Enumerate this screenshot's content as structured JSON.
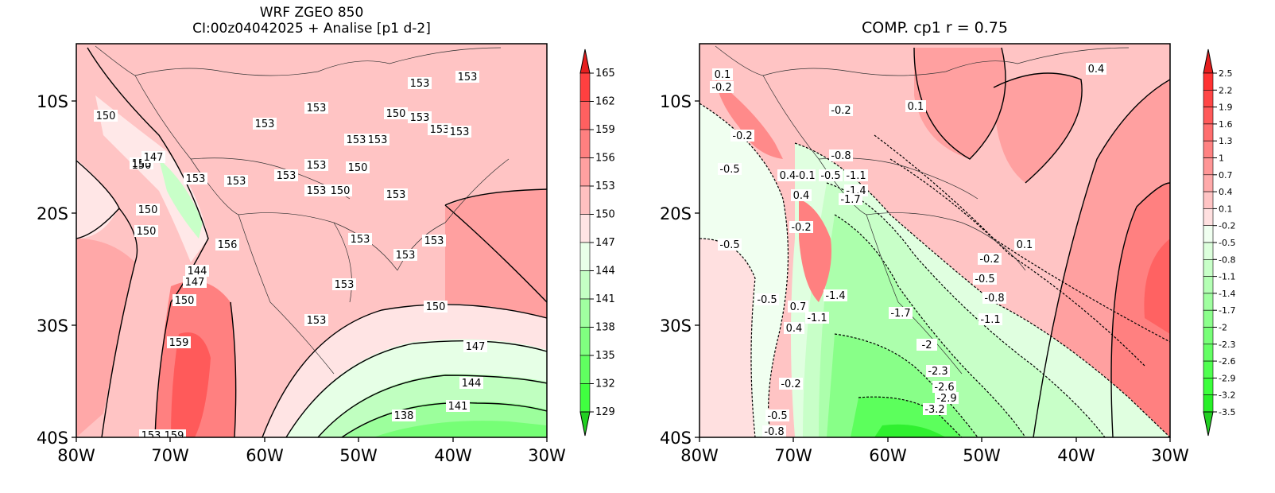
{
  "left_panel": {
    "title_line1": "WRF ZGEO 850",
    "title_line2": "CI:00z04042025 + Analise  [p1 d-2]",
    "lon_labels": [
      "80W",
      "70W",
      "60W",
      "50W",
      "40W",
      "30W"
    ],
    "lat_labels": [
      "10S",
      "20S",
      "30S",
      "40S"
    ],
    "colorbar": {
      "arrow_top_color": "#e61e1e",
      "arrow_bottom_color": "#22d022",
      "ticks": [
        "165",
        "162",
        "159",
        "156",
        "153",
        "150",
        "147",
        "144",
        "141",
        "138",
        "135",
        "132",
        "129"
      ],
      "colors": [
        "#ff1e1e",
        "#ff4040",
        "#ff6060",
        "#ff8080",
        "#ffa0a0",
        "#ffc0c0",
        "#ffe4e4",
        "#e8ffe8",
        "#c4ffc4",
        "#a0ffa0",
        "#80ff80",
        "#60ff60",
        "#40ff40",
        "#22e022"
      ]
    },
    "contour_labels": [
      "153",
      "153",
      "153",
      "153",
      "153",
      "150",
      "153",
      "153",
      "150",
      "153",
      "153",
      "153",
      "153",
      "153",
      "150",
      "153",
      "153",
      "150",
      "153",
      "153",
      "150",
      "147",
      "150",
      "153",
      "150",
      "156",
      "150",
      "144",
      "147",
      "150",
      "153",
      "153",
      "153",
      "153",
      "150",
      "159",
      "147",
      "144",
      "141",
      "138",
      "153",
      "159"
    ]
  },
  "right_panel": {
    "title": "COMP. cp1   r =   0.75",
    "lon_labels": [
      "80W",
      "70W",
      "60W",
      "50W",
      "40W",
      "30W"
    ],
    "lat_labels": [
      "10S",
      "20S",
      "30S",
      "40S"
    ],
    "colorbar": {
      "arrow_top_color": "#e61e1e",
      "arrow_bottom_color": "#22d022",
      "ticks": [
        "2.5",
        "2.2",
        "1.9",
        "1.6",
        "1.3",
        "1",
        "0.7",
        "0.4",
        "0.1",
        "-0.2",
        "-0.5",
        "-0.8",
        "-1.1",
        "-1.4",
        "-1.7",
        "-2",
        "-2.3",
        "-2.6",
        "-2.9",
        "-3.2",
        "-3.5"
      ],
      "colors": [
        "#ff1e1e",
        "#ff3232",
        "#ff4646",
        "#ff5a5a",
        "#ff6e6e",
        "#ff8282",
        "#ff9696",
        "#ffaaaa",
        "#ffc4c4",
        "#ffe0e0",
        "#f0fff0",
        "#dcffdc",
        "#c8ffc8",
        "#b4ffb4",
        "#a0ffa0",
        "#8cff8c",
        "#78ff78",
        "#64ff64",
        "#50ff50",
        "#3cff3c",
        "#28f028",
        "#22e022"
      ]
    },
    "contour_labels": [
      "0.1",
      "-0.2",
      "-0.2",
      "0.1",
      "-0.2",
      "-0.5",
      "-0.8",
      "0.4",
      "-0.1",
      "-0.5",
      "-1.1",
      "-1.4",
      "0.4",
      "-1.7",
      "-0.2",
      "-0.5",
      "0.4",
      "-0.2",
      "0.1",
      "-0.5",
      "-0.8",
      "-0.5",
      "0.7",
      "-1.4",
      "-1.7",
      "-1.1",
      "-1.1",
      "0.4",
      "-2",
      "-2.3",
      "-2.6",
      "-2.9",
      "-3.2",
      "-0.2",
      "-0.5",
      "-0.8"
    ]
  }
}
